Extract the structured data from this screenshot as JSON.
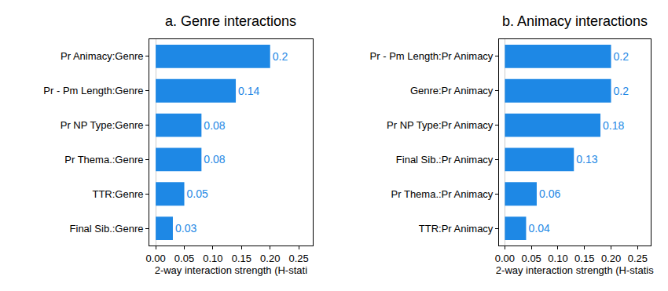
{
  "chart_data": [
    {
      "type": "bar",
      "title": "a. Genre interactions",
      "xlabel": "2-way interaction strength (H-stati",
      "categories": [
        "Pr Animacy:Genre",
        "Pr - Pm Length:Genre",
        "Pr NP Type:Genre",
        "Pr Thema.:Genre",
        "TTR:Genre",
        "Final Sib.:Genre"
      ],
      "values": [
        0.2,
        0.14,
        0.08,
        0.08,
        0.05,
        0.03
      ],
      "color": "#1e88e5",
      "orientation": "horizontal",
      "data_labels": true,
      "grid": false,
      "xlim": [
        -0.011,
        0.274
      ],
      "xticks": [
        {
          "value": 0,
          "label": "0.00"
        },
        {
          "value": 0.05,
          "label": "0.05"
        },
        {
          "value": 0.1,
          "label": "0.10"
        },
        {
          "value": 0.15,
          "label": "0.15"
        },
        {
          "value": 0.2,
          "label": "0.20"
        },
        {
          "value": 0.25,
          "label": "0.25"
        }
      ]
    },
    {
      "type": "bar",
      "title": "b. Animacy interactions",
      "xlabel": "2-way interaction strength (H-statis",
      "categories": [
        "Pr - Pm Length:Pr Animacy",
        "Genre:Pr Animacy",
        "Pr NP Type:Pr Animacy",
        "Final Sib.:Pr Animacy",
        "Pr Thema.:Pr Animacy",
        "TTR:Pr Animacy"
      ],
      "values": [
        0.2,
        0.2,
        0.18,
        0.13,
        0.06,
        0.04
      ],
      "color": "#1e88e5",
      "orientation": "horizontal",
      "data_labels": true,
      "grid": false,
      "xlim": [
        -0.011,
        0.274
      ],
      "xticks": [
        {
          "value": 0,
          "label": "0.00"
        },
        {
          "value": 0.05,
          "label": "0.05"
        },
        {
          "value": 0.1,
          "label": "0.10"
        },
        {
          "value": 0.15,
          "label": "0.15"
        },
        {
          "value": 0.2,
          "label": "0.20"
        },
        {
          "value": 0.25,
          "label": "0.25"
        }
      ]
    }
  ]
}
